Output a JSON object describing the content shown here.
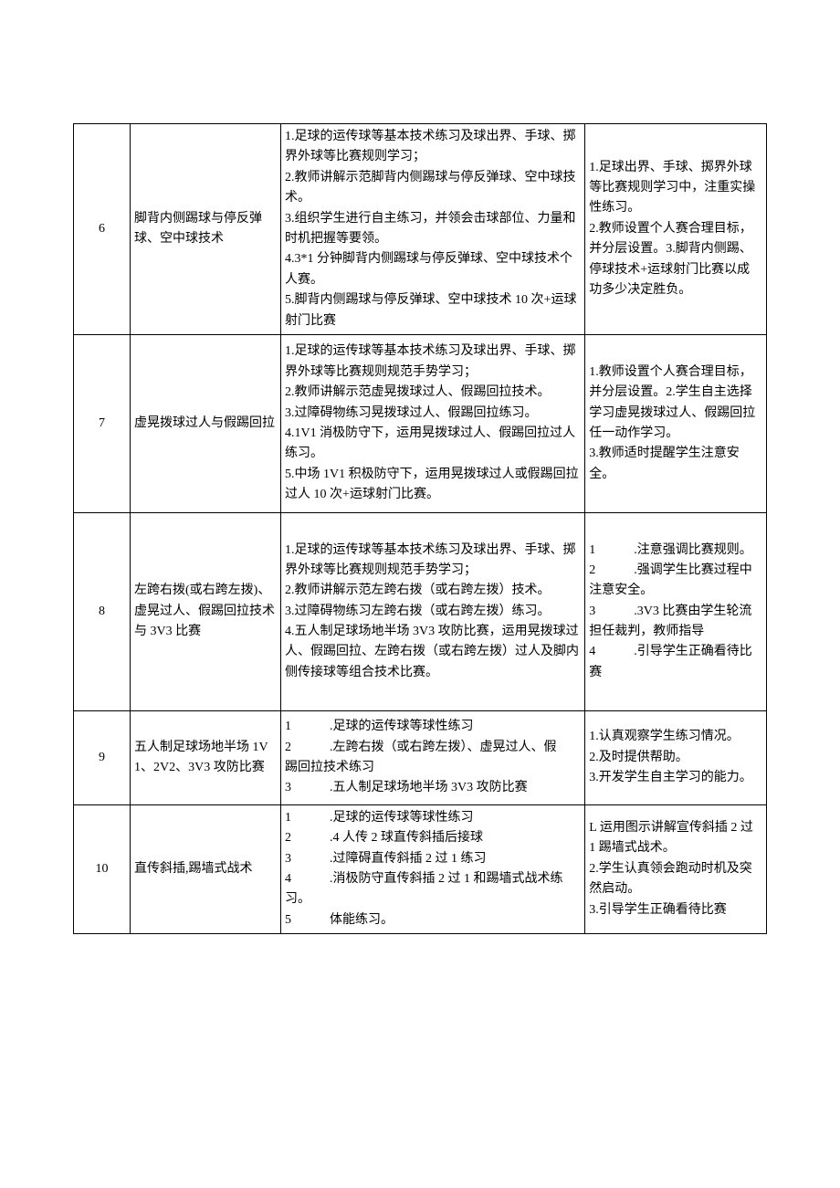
{
  "rows": [
    {
      "num": "6",
      "topic": "脚背内侧踢球与停反弹球、空中球技术",
      "content": "1.足球的运传球等基本技术练习及球出界、手球、掷界外球等比赛规则学习；\n2.教师讲解示范脚背内侧踢球与停反弹球、空中球技术。\n3.组织学生进行自主练习，并领会击球部位、力量和时机把握等要领。\n4.3*1 分钟脚背内侧踢球与停反弹球、空中球技术个人赛。\n5.脚背内侧踢球与停反弹球、空中球技术 10 次+运球射门比赛",
      "notes": "1.足球出界、手球、掷界外球等比赛规则学习中，注重实操性练习。\n2.教师设置个人赛合理目标，并分层设置。3.脚背内侧踢、停球技术+运球射门比赛以成功多少决定胜负。"
    },
    {
      "num": "7",
      "topic": "虚晃拨球过人与假踢回拉",
      "content": "1.足球的运传球等基本技术练习及球出界、手球、掷界外球等比赛规则规范手势学习；\n2.教师讲解示范虚晃拨球过人、假踢回拉技术。\n3.过障碍物练习晃拨球过人、假踢回拉练习。\n4.1V1 消极防守下，运用晃拨球过人、假踢回拉过人练习。\n5.中场 1V1 积极防守下，运用晃拨球过人或假踢回拉过人 10 次+运球射门比赛。",
      "notes": "1.教师设置个人赛合理目标，并分层设置。2.学生自主选择学习虚晃拨球过人、假踢回拉任一动作学习。\n3.教师适时提醒学生注意安全。"
    },
    {
      "num": "8",
      "topic": "左跨右拨(或右跨左拨)、虚晃过人、假踢回拉技术与 3V3 比赛",
      "content": "1.足球的运传球等基本技术练习及球出界、手球、掷界外球等比赛规则规范手势学习；\n2.教师讲解示范左跨右拨（或右跨左拨）技术。\n3.过障碍物练习左跨右拨（或右跨左拨）练习。\n4.五人制足球场地半场 3V3 攻防比赛，运用晃拨球过人、假踢回拉、左跨右拨（或右跨左拨）过人及脚内侧传接球等组合技术比赛。",
      "notes": "1　　　.注意强调比赛规则。\n2　　　.强调学生比赛过程中注意安全。\n3　　　.3V3 比赛由学生轮流担任裁判，教师指导\n4　　　.引导学生正确看待比赛"
    },
    {
      "num": "9",
      "topic": "五人制足球场地半场 1V1、2V2、3V3 攻防比赛",
      "content": "1　　　.足球的运传球等球性练习\n2　　　.左跨右拨（或右跨左拨）、虚晃过人、假\n踢回拉技术练习\n3　　　.五人制足球场地半场 3V3 攻防比赛",
      "notes": "1.认真观察学生练习情况。\n2.及时提供帮助。\n3.开发学生自主学习的能力。"
    },
    {
      "num": "10",
      "topic": "直传斜插,踢墙式战术",
      "content": "1　　　.足球的运传球等球性练习\n2　　　.4 人传 2 球直传斜插后接球\n3　　　.过障碍直传斜插 2 过 1 练习\n4　　　.消极防守直传斜插 2 过 1 和踢墙式战术练习。\n5　　　体能练习。",
      "notes": "L 运用图示讲解宣传斜插 2 过 1 踢墙式战术。\n2.学生认真领会跑动时机及突然启动。\n3.引导学生正确看待比赛"
    }
  ]
}
